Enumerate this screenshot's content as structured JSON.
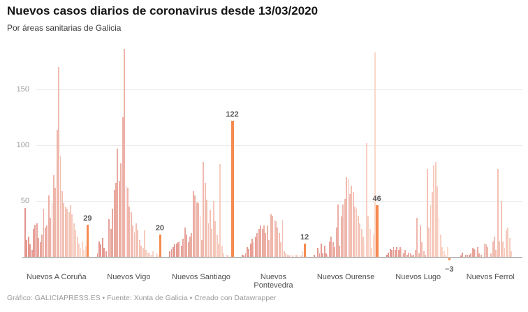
{
  "header": {
    "title": "Nuevos casos diarios de coronavirus desde 13/03/2020",
    "subtitle": "Por áreas sanitarias de Galicia"
  },
  "footer": {
    "text": "Gráfico: GALICIAPRESS.ES • Fuente: Xunta de Galicia • Creado con Datawrapper"
  },
  "chart_data": {
    "type": "bar",
    "title": "Nuevos casos diarios de coronavirus desde 13/03/2020",
    "subtitle": "Por áreas sanitarias de Galicia",
    "xlabel": "",
    "ylabel": "",
    "yticks": [
      150,
      100,
      50
    ],
    "ylim": [
      -10,
      187.5
    ],
    "grid": true,
    "legend": "none",
    "colors": {
      "highlight": "#f68b52",
      "bar_gradient_start": "#e2948d",
      "bar_gradient_end": "#fcdbcc",
      "axis": "#a4a4a4",
      "gridline": "#ececec",
      "tick_label": "#9b9b9b",
      "value_label": "#575757"
    },
    "groups": [
      {
        "label": "Nuevos A Coruña",
        "last_label": "29",
        "last_value": 29,
        "values": [
          44,
          15,
          18,
          11,
          6,
          25,
          29,
          30,
          17,
          13,
          20,
          43,
          26,
          28,
          55,
          35,
          48,
          73,
          62,
          114,
          170,
          90,
          59,
          48,
          45,
          43,
          40,
          46,
          38,
          30,
          24,
          18,
          12,
          8,
          14,
          6,
          10
        ]
      },
      {
        "label": "Nuevos Vigo",
        "last_label": "20",
        "last_value": 20,
        "values": [
          3,
          14,
          11,
          17,
          8,
          5,
          0,
          34,
          25,
          43,
          60,
          66,
          97,
          68,
          84,
          125,
          186,
          63,
          62,
          45,
          40,
          28,
          22,
          30,
          24,
          15,
          10,
          8,
          24,
          6,
          4,
          3,
          2,
          5,
          0,
          3,
          2
        ]
      },
      {
        "label": "Nuevos Santiago",
        "last_label": "122",
        "last_value": 122,
        "values": [
          5,
          7,
          9,
          11,
          12,
          13,
          14,
          10,
          16,
          26,
          20,
          13,
          18,
          21,
          59,
          55,
          49,
          48,
          36,
          15,
          85,
          66,
          51,
          30,
          42,
          25,
          50,
          32,
          20,
          12,
          83,
          10,
          3,
          0,
          2,
          1,
          0
        ]
      },
      {
        "label": "Nuevos Pontevedra",
        "last_label": "12",
        "last_value": 12,
        "values": [
          2,
          1,
          3,
          9,
          7,
          12,
          16,
          13,
          18,
          21,
          25,
          28,
          25,
          28,
          21,
          28,
          15,
          38,
          37,
          33,
          32,
          26,
          21,
          13,
          33,
          5,
          3,
          2,
          1,
          2,
          1,
          0,
          2,
          1,
          0,
          1,
          5
        ]
      },
      {
        "label": "Nuevos Ourense",
        "last_label": "46",
        "last_value": 46,
        "values": [
          2,
          0,
          8,
          3,
          12,
          3,
          10,
          3,
          2,
          14,
          18,
          13,
          9,
          26,
          47,
          10,
          36,
          47,
          52,
          71,
          70,
          56,
          64,
          58,
          45,
          43,
          37,
          30,
          25,
          18,
          12,
          102,
          37,
          25,
          8,
          20,
          183
        ]
      },
      {
        "label": "Nuevos Lugo",
        "last_label": "−3",
        "last_value": -3,
        "values": [
          2,
          4,
          7,
          6,
          9,
          6,
          9,
          6,
          9,
          7,
          3,
          6,
          2,
          4,
          3,
          1,
          2,
          6,
          35,
          3,
          28,
          13,
          5,
          2,
          79,
          26,
          46,
          58,
          82,
          85,
          63,
          35,
          20,
          9,
          5,
          2,
          9
        ]
      },
      {
        "label": "Nuevos Ferrol",
        "last_label": "",
        "last_value": 0,
        "values": [
          0,
          1,
          4,
          0,
          2,
          2,
          2,
          3,
          8,
          7,
          6,
          9,
          3,
          2,
          0,
          12,
          11,
          9,
          0,
          3,
          14,
          18,
          6,
          79,
          14,
          50,
          14,
          8,
          24,
          26,
          17,
          5,
          0,
          0,
          0,
          0,
          0
        ]
      }
    ]
  }
}
